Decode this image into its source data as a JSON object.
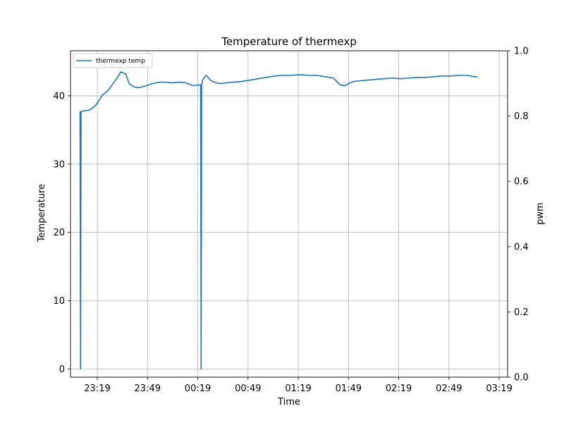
{
  "chart_data": {
    "type": "line",
    "title": "Temperature of thermexp",
    "xlabel": "Time",
    "ylabel": "Temperature",
    "y2label": "pwm",
    "x_ticks": [
      "23:19",
      "23:49",
      "00:19",
      "00:49",
      "01:19",
      "01:49",
      "02:19",
      "02:49",
      "03:19"
    ],
    "y_ticks": [
      0,
      10,
      20,
      30,
      40
    ],
    "y2_ticks": [
      "0.0",
      "0.2",
      "0.4",
      "0.6",
      "0.8",
      "1.0"
    ],
    "ylim": [
      -1.2,
      46.6
    ],
    "y2lim": [
      0.0,
      1.0
    ],
    "xlim": [
      "23:03",
      "03:24"
    ],
    "grid": true,
    "legend_position": "upper-left",
    "series": [
      {
        "name": "thermexp temp",
        "color": "#1f77b4",
        "x": [
          "23:09",
          "23:09",
          "23:11",
          "23:14",
          "23:16",
          "23:18",
          "23:20",
          "23:22",
          "23:25",
          "23:27",
          "23:29",
          "23:31",
          "23:33",
          "23:36",
          "23:38",
          "23:41",
          "23:44",
          "23:47",
          "23:52",
          "23:56",
          "00:00",
          "00:04",
          "00:08",
          "00:12",
          "00:16",
          "00:20",
          "00:22",
          "00:24",
          "00:27",
          "00:30",
          "00:33",
          "00:36",
          "00:40",
          "00:45",
          "00:50",
          "00:55",
          "01:00",
          "01:05",
          "01:10",
          "01:15",
          "01:20",
          "01:25",
          "01:30",
          "01:35",
          "01:40",
          "01:44",
          "01:47",
          "01:49",
          "01:52",
          "01:56",
          "02:00",
          "02:05",
          "02:10",
          "02:15",
          "02:20",
          "02:25",
          "02:30",
          "02:35",
          "02:40",
          "02:45",
          "02:50",
          "02:55",
          "03:00",
          "03:04",
          "03:06"
        ],
        "y": [
          0,
          37.7,
          37.8,
          37.9,
          38.2,
          38.6,
          39.3,
          40.1,
          40.7,
          41.3,
          42.0,
          42.7,
          43.5,
          43.2,
          41.8,
          41.3,
          41.2,
          41.4,
          41.8,
          42.0,
          42.0,
          41.9,
          42.0,
          41.9,
          41.5,
          41.6,
          42.4,
          43.0,
          42.2,
          41.9,
          41.8,
          41.9,
          42.0,
          42.1,
          42.3,
          42.5,
          42.7,
          42.9,
          43.0,
          43.0,
          43.1,
          43.0,
          43.0,
          42.8,
          42.6,
          41.6,
          41.5,
          41.8,
          42.1,
          42.2,
          42.3,
          42.4,
          42.5,
          42.6,
          42.5,
          42.6,
          42.7,
          42.7,
          42.8,
          42.9,
          42.9,
          43.0,
          43.0,
          42.8,
          42.8
        ],
        "spikes": [
          {
            "x": "23:09",
            "y": 0
          },
          {
            "x": "00:21",
            "y": 0
          }
        ]
      }
    ]
  }
}
